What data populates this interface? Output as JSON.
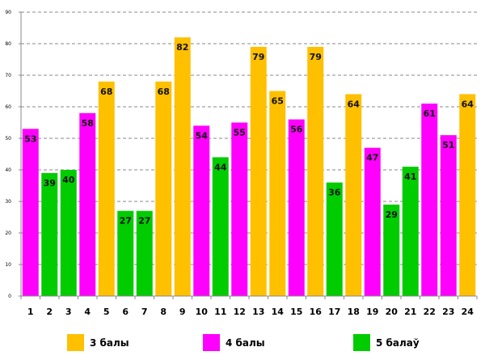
{
  "chart_data": {
    "type": "bar",
    "title": "",
    "xlabel": "",
    "ylabel": "",
    "ylim": [
      0,
      90
    ],
    "yticks": [
      0,
      10,
      20,
      30,
      40,
      50,
      60,
      70,
      80,
      90
    ],
    "grid": true,
    "legend_placement": "bottom",
    "categories": [
      "1",
      "2",
      "3",
      "4",
      "5",
      "6",
      "7",
      "8",
      "9",
      "10",
      "11",
      "12",
      "13",
      "14",
      "15",
      "16",
      "17",
      "18",
      "19",
      "20",
      "21",
      "22",
      "23",
      "24"
    ],
    "values": [
      53,
      39,
      40,
      58,
      68,
      27,
      27,
      68,
      82,
      54,
      44,
      55,
      79,
      65,
      56,
      79,
      36,
      64,
      47,
      29,
      41,
      61,
      51,
      64
    ],
    "groups": [
      "4 балы",
      "5 балаў",
      "5 балаў",
      "4 балы",
      "3 балы",
      "5 балаў",
      "5 балаў",
      "3 балы",
      "3 балы",
      "4 балы",
      "5 балаў",
      "4 балы",
      "3 балы",
      "3 балы",
      "4 балы",
      "3 балы",
      "5 балаў",
      "3 балы",
      "4 балы",
      "5 балаў",
      "5 балаў",
      "4 балы",
      "4 балы",
      "3 балы"
    ],
    "legend": [
      {
        "name": "3 балы",
        "color": "#FFC000"
      },
      {
        "name": "4 балы",
        "color": "#FF00FF"
      },
      {
        "name": "5 балаў",
        "color": "#00CC00"
      }
    ]
  }
}
